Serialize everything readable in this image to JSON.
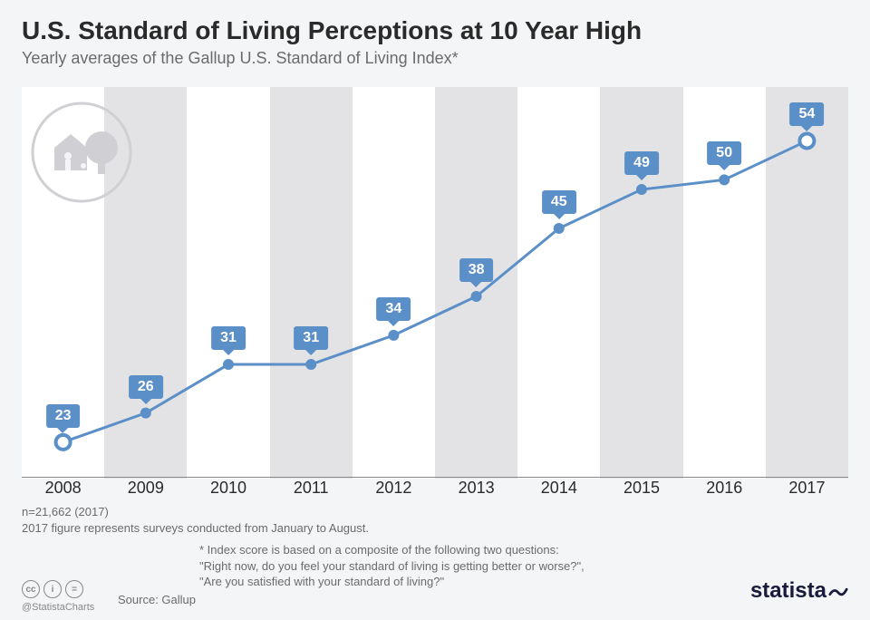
{
  "title": "U.S. Standard of Living Perceptions at 10 Year High",
  "subtitle": "Yearly averages of the Gallup U.S. Standard of Living Index*",
  "chart": {
    "type": "line",
    "years": [
      "2008",
      "2009",
      "2010",
      "2011",
      "2012",
      "2013",
      "2014",
      "2015",
      "2016",
      "2017"
    ],
    "values": [
      23,
      26,
      31,
      31,
      34,
      38,
      45,
      49,
      50,
      54
    ],
    "ylim": [
      20,
      56
    ],
    "line_color": "#5b8fc7",
    "line_width": 3,
    "marker_fill": "#5b8fc7",
    "marker_open_fill": "#ffffff",
    "marker_radius": 6,
    "marker_open_radius": 8,
    "open_indices": [
      0,
      9
    ],
    "label_bg": "#5b8fc7",
    "label_color": "#ffffff",
    "label_fontsize": 16,
    "band_white": "#ffffff",
    "band_grey": "#e3e3e6",
    "x_label_fontsize": 18,
    "x_label_color": "#2a2a2a",
    "deco_circle_stroke": "#d0d0d4"
  },
  "notes": {
    "n1_line1": "n=21,662 (2017)",
    "n1_line2": "2017 figure represents surveys conducted from January to August.",
    "n2_line1": "* Index score is based on a composite of the following two questions:",
    "n2_line2": "\"Right now, do you feel your standard of living is getting better or worse?\",",
    "n2_line3": "\"Are you satisfied with your standard of living?\""
  },
  "source_label": "Source: Gallup",
  "cc": {
    "a": "cc",
    "b": "i",
    "c": "="
  },
  "handle": "@StatistaCharts",
  "logo_text": "statista",
  "colors": {
    "page_bg": "#f4f5f7",
    "title": "#2a2a2a",
    "subtitle": "#6b6b6b",
    "notes": "#6b6b6b",
    "baseline": "#888888",
    "logo": "#1a1a3a"
  }
}
